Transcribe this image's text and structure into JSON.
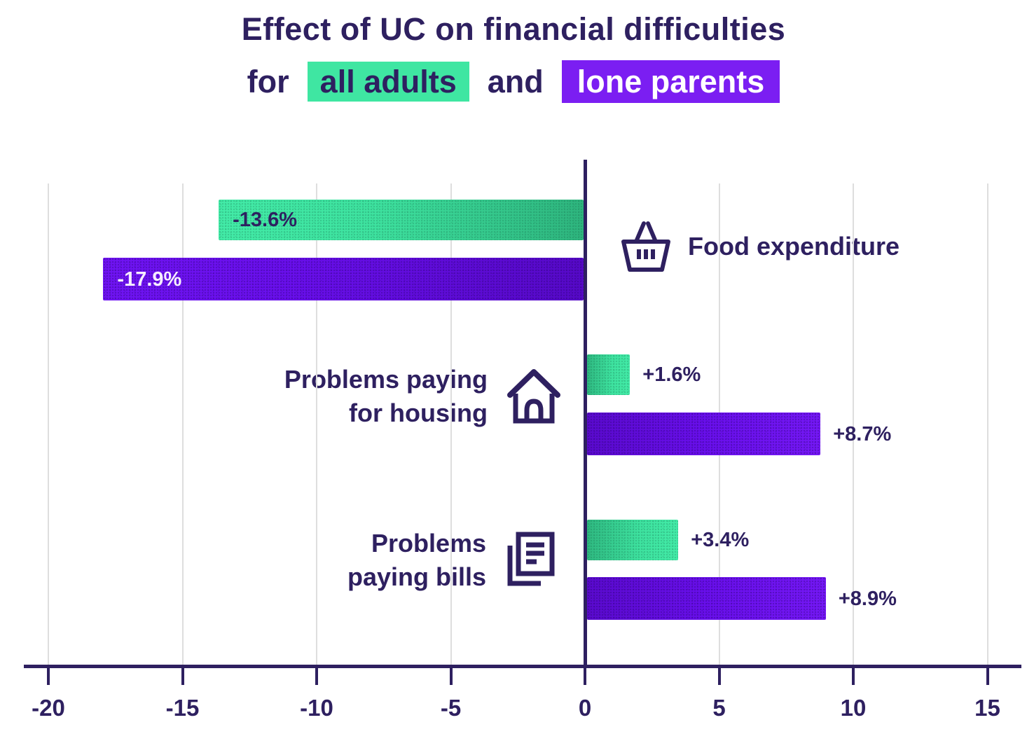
{
  "title": {
    "line1": "Effect of UC on financial difficulties",
    "line2_prefix": "for",
    "line2_conjunction": "and",
    "highlight_all_adults": "all adults",
    "highlight_lone_parents": "lone parents"
  },
  "colors": {
    "text_dark": "#2E2060",
    "green": "#3FE6A2",
    "green_dark": "#2EB57E",
    "purple": "#690FEC",
    "purple_dark": "#5609C8",
    "chip_green": "#3FE6A2",
    "chip_purple": "#7B1EF2",
    "gridline": "#DEDEDE",
    "bar_label_light": "#F6EDFE"
  },
  "chart_data": {
    "type": "bar",
    "orientation": "horizontal",
    "unit": "percent",
    "title": "Effect of UC on financial difficulties for all adults and lone parents",
    "categories": [
      {
        "label": "Food expenditure",
        "icon": "shopping-basket-icon",
        "label_side": "right-of-axis"
      },
      {
        "label": "Problems paying\nfor housing",
        "icon": "house-icon",
        "label_side": "left-of-axis"
      },
      {
        "label": "Problems\npaying bills",
        "icon": "bills-icon",
        "label_side": "left-of-axis"
      }
    ],
    "series": [
      {
        "name": "all adults",
        "color": "#3FE6A2",
        "values": [
          -13.6,
          1.6,
          3.4
        ],
        "value_labels": [
          "-13.6%",
          "+1.6%",
          "+3.4%"
        ]
      },
      {
        "name": "lone parents",
        "color": "#690FEC",
        "values": [
          -17.9,
          8.7,
          8.9
        ],
        "value_labels": [
          "-17.9%",
          "+8.7%",
          "+8.9%"
        ]
      }
    ],
    "x_axis": {
      "ticks": [
        -20,
        -15,
        -10,
        -5,
        0,
        5,
        10,
        15
      ],
      "tick_labels": [
        "-20",
        "-15",
        "-10",
        "-5",
        "0",
        "5",
        "10",
        "15"
      ],
      "xlim": [
        -21,
        16.5
      ],
      "gridlines": true
    }
  }
}
